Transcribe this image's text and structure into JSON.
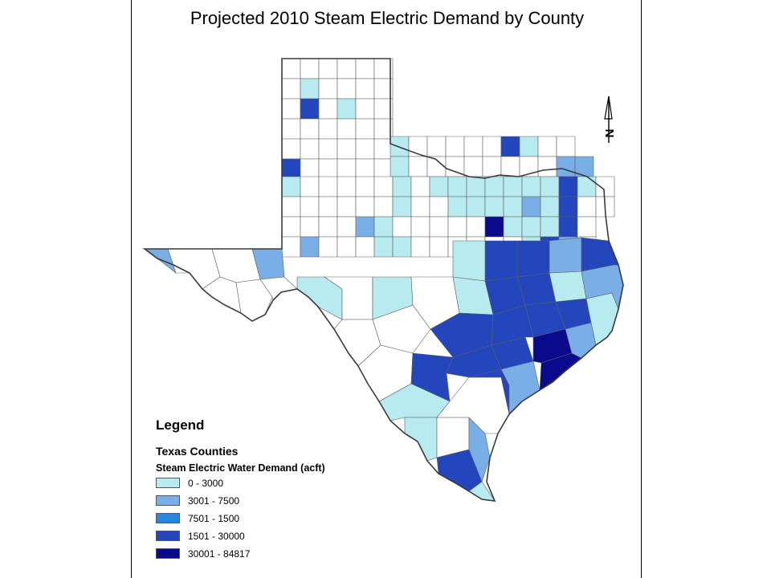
{
  "title": "Projected 2010 Steam Electric Demand by County",
  "north_arrow": {
    "label": "N"
  },
  "legend": {
    "heading": "Legend",
    "layer": "Texas Counties",
    "field": "Steam Electric Water Demand (acft)",
    "classes": [
      {
        "label": "0 - 3000",
        "color": "#b7ebef"
      },
      {
        "label": "3001 - 7500",
        "color": "#7aaee6"
      },
      {
        "label": "7501 - 1500",
        "color": "#2a86da"
      },
      {
        "label": "1501 - 30000",
        "color": "#2346bd"
      },
      {
        "label": "30001 - 84817",
        "color": "#0a0a8c"
      }
    ]
  },
  "map": {
    "no_data_color": "#ffffff",
    "boundary_color": "#606060"
  }
}
